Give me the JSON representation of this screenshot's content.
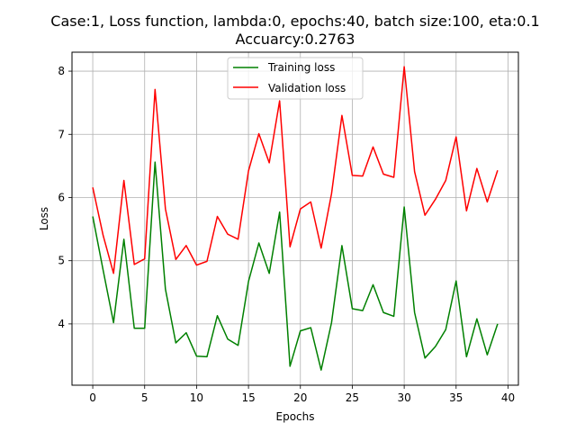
{
  "chart_data": {
    "type": "line",
    "title_line1": "Case:1, Loss function, lambda:0, epochs:40, batch size:100, eta:0.1",
    "title_line2": "Accuarcy:0.2763",
    "xlabel": "Epochs",
    "ylabel": "Loss",
    "xlim": [
      -2,
      41
    ],
    "ylim": [
      3.03,
      8.3
    ],
    "xticks": [
      0,
      5,
      10,
      15,
      20,
      25,
      30,
      35,
      40
    ],
    "yticks": [
      4,
      5,
      6,
      7,
      8
    ],
    "grid": true,
    "legend_position": "top-center",
    "x": [
      0,
      1,
      2,
      3,
      4,
      5,
      6,
      7,
      8,
      9,
      10,
      11,
      12,
      13,
      14,
      15,
      16,
      17,
      18,
      19,
      20,
      21,
      22,
      23,
      24,
      25,
      26,
      27,
      28,
      29,
      30,
      31,
      32,
      33,
      34,
      35,
      36,
      37,
      38,
      39
    ],
    "series": [
      {
        "name": "Training loss",
        "color": "#008000",
        "values": [
          5.7,
          4.85,
          4.02,
          5.34,
          3.93,
          3.93,
          6.56,
          4.55,
          3.7,
          3.86,
          3.49,
          3.48,
          4.13,
          3.76,
          3.66,
          4.67,
          5.28,
          4.8,
          5.77,
          3.33,
          3.89,
          3.94,
          3.27,
          4.02,
          5.24,
          4.24,
          4.21,
          4.62,
          4.18,
          4.12,
          5.85,
          4.18,
          3.46,
          3.64,
          3.91,
          4.68,
          3.48,
          4.08,
          3.51,
          4.0
        ]
      },
      {
        "name": "Validation loss",
        "color": "#ff0000",
        "values": [
          6.16,
          5.4,
          4.8,
          6.27,
          4.94,
          5.03,
          7.71,
          5.82,
          5.02,
          5.24,
          4.93,
          4.99,
          5.7,
          5.42,
          5.34,
          6.42,
          7.01,
          6.55,
          7.53,
          5.22,
          5.82,
          5.93,
          5.2,
          6.06,
          7.3,
          6.35,
          6.34,
          6.8,
          6.37,
          6.32,
          8.07,
          6.41,
          5.72,
          5.97,
          6.27,
          6.96,
          5.79,
          6.46,
          5.93,
          6.43
        ]
      }
    ]
  }
}
